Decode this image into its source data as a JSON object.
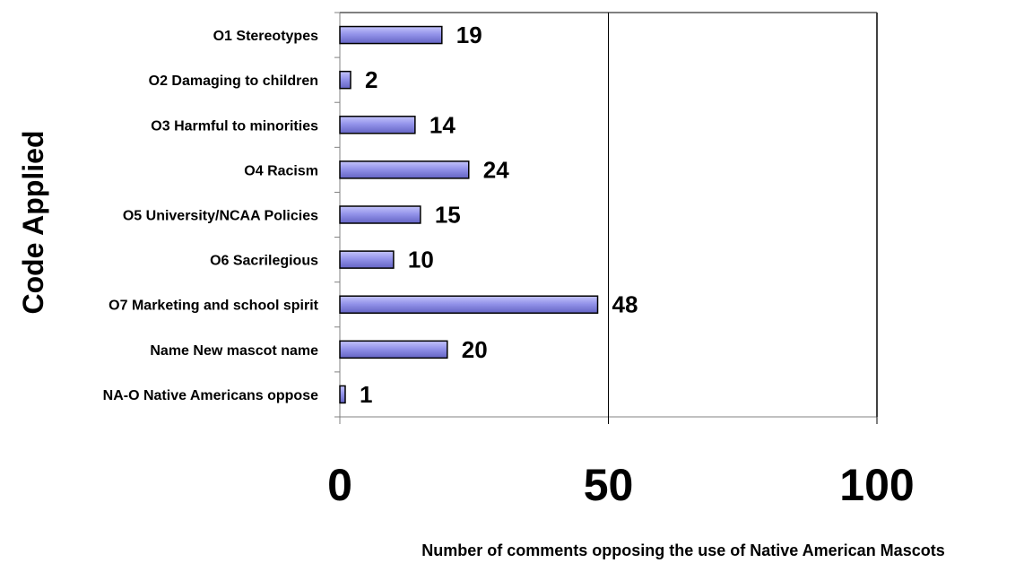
{
  "chart_data": {
    "type": "bar",
    "orientation": "horizontal",
    "categories": [
      "O1 Stereotypes",
      "O2 Damaging to children",
      "O3 Harmful to minorities",
      "O4 Racism",
      "O5 University/NCAA Policies",
      "O6 Sacrilegious",
      "O7 Marketing and school spirit",
      "Name New mascot name",
      "NA-O Native Americans oppose"
    ],
    "values": [
      19,
      2,
      14,
      24,
      15,
      10,
      48,
      20,
      1
    ],
    "xticks": [
      "0",
      "50",
      "100"
    ],
    "xlim": [
      0,
      100
    ],
    "xlabel": "Number of comments opposing the use of Native American Mascots",
    "ylabel": "Code Applied",
    "grid": "vertical gridlines at 50 and 100",
    "legend": "none",
    "colors": {
      "bar": "#8f8fe6",
      "bar_light": "#b8b8f8",
      "bar_dark": "#5a5ab8",
      "border": "#000000",
      "frame": "#808080"
    }
  }
}
